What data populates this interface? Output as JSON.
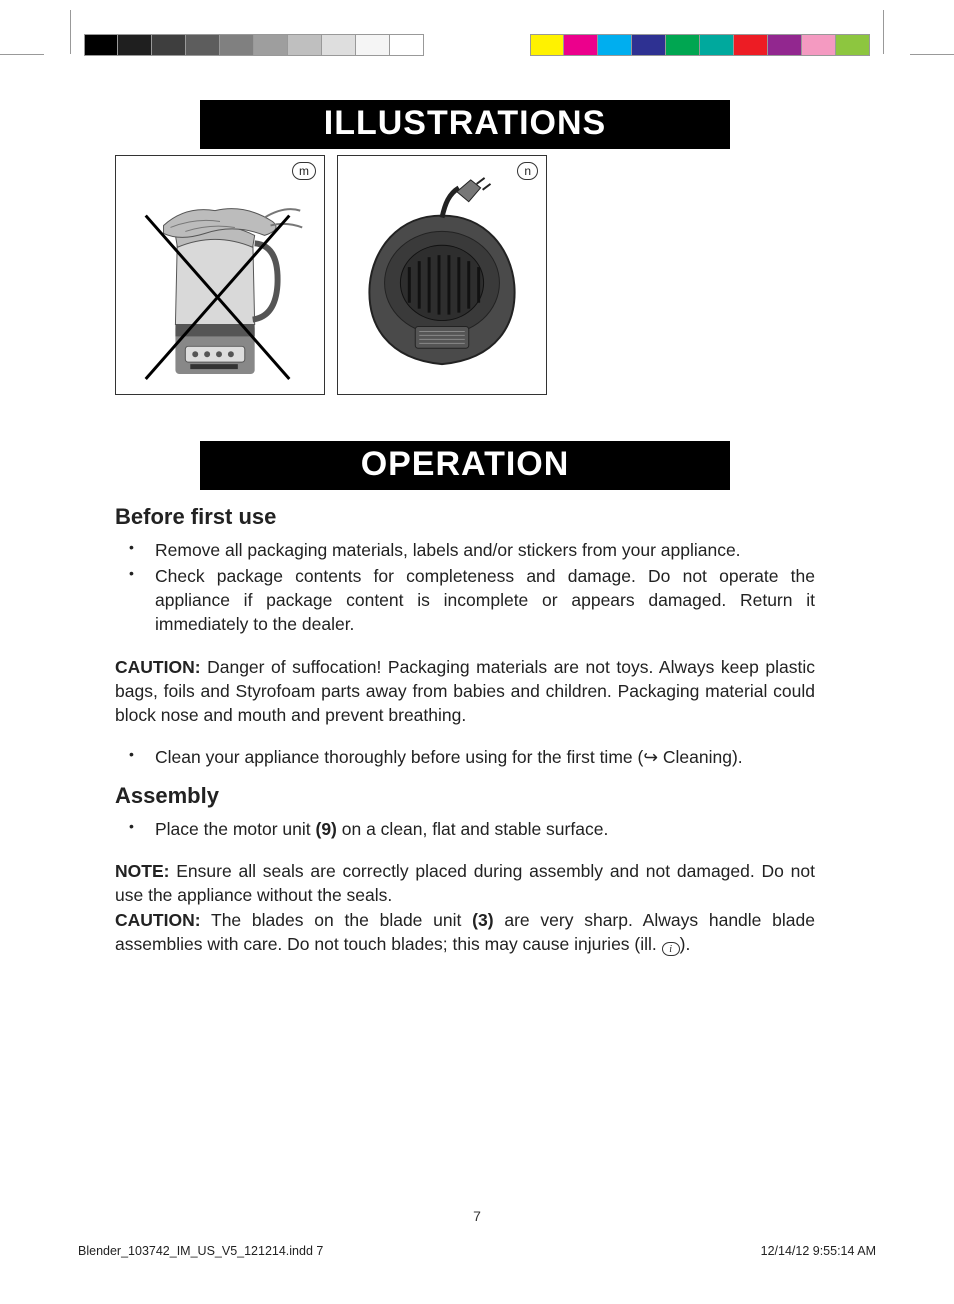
{
  "registration_bars": {
    "grayscale_swatches": [
      "#000000",
      "#1f1f1f",
      "#3e3e3e",
      "#5d5d5d",
      "#808080",
      "#9e9e9e",
      "#bfbfbf",
      "#dedede",
      "#f5f5f5",
      "#ffffff"
    ],
    "color_swatches": [
      "#fff200",
      "#ec008c",
      "#00aeef",
      "#2e3192",
      "#00a651",
      "#00a99d",
      "#ed1c24",
      "#92278f",
      "#f49ac1",
      "#8dc63f"
    ]
  },
  "sections": {
    "illustrations": {
      "title": "ILLUSTRATIONS"
    },
    "operation": {
      "title": "OPERATION"
    }
  },
  "illus": {
    "m": {
      "label": "m"
    },
    "n": {
      "label": "n"
    }
  },
  "before_first_use": {
    "heading": "Before first use",
    "items": [
      "Remove all packaging materials, labels and/or stickers from your appliance.",
      "Check package contents for completeness and damage. Do not operate the appliance if package content is incomplete or appears damaged. Return it immediately to the dealer."
    ],
    "caution_label": "CAUTION:",
    "caution_text": " Danger of suffocation! Packaging materials are not toys. Always keep plastic bags, foils and Styrofoam parts away from babies and children. Packaging material could block nose and mouth and prevent breathing.",
    "clean_item_prefix": "Clean your appliance thoroughly before using for the first time (",
    "clean_item_ref": "Cleaning",
    "clean_item_suffix": ")."
  },
  "assembly": {
    "heading": "Assembly",
    "item_prefix": "Place the motor unit ",
    "item_part": "(9)",
    "item_suffix": " on a clean, flat and stable surface.",
    "note_label": "NOTE:",
    "note_text": " Ensure all seals are correctly placed during assembly and not damaged. Do not use the appliance without the seals.",
    "caution_label": "CAUTION:",
    "caution_prefix": " The blades on the blade unit ",
    "caution_part": "(3)",
    "caution_mid": " are very sharp. Always handle blade assemblies with care. Do not touch blades; this may cause injuries (ill. ",
    "caution_suffix": ").",
    "info_icon_label": "i"
  },
  "page_number": "7",
  "footer": {
    "left": "Blender_103742_IM_US_V5_121214.indd   7",
    "right": "12/14/12   9:55:14 AM"
  }
}
